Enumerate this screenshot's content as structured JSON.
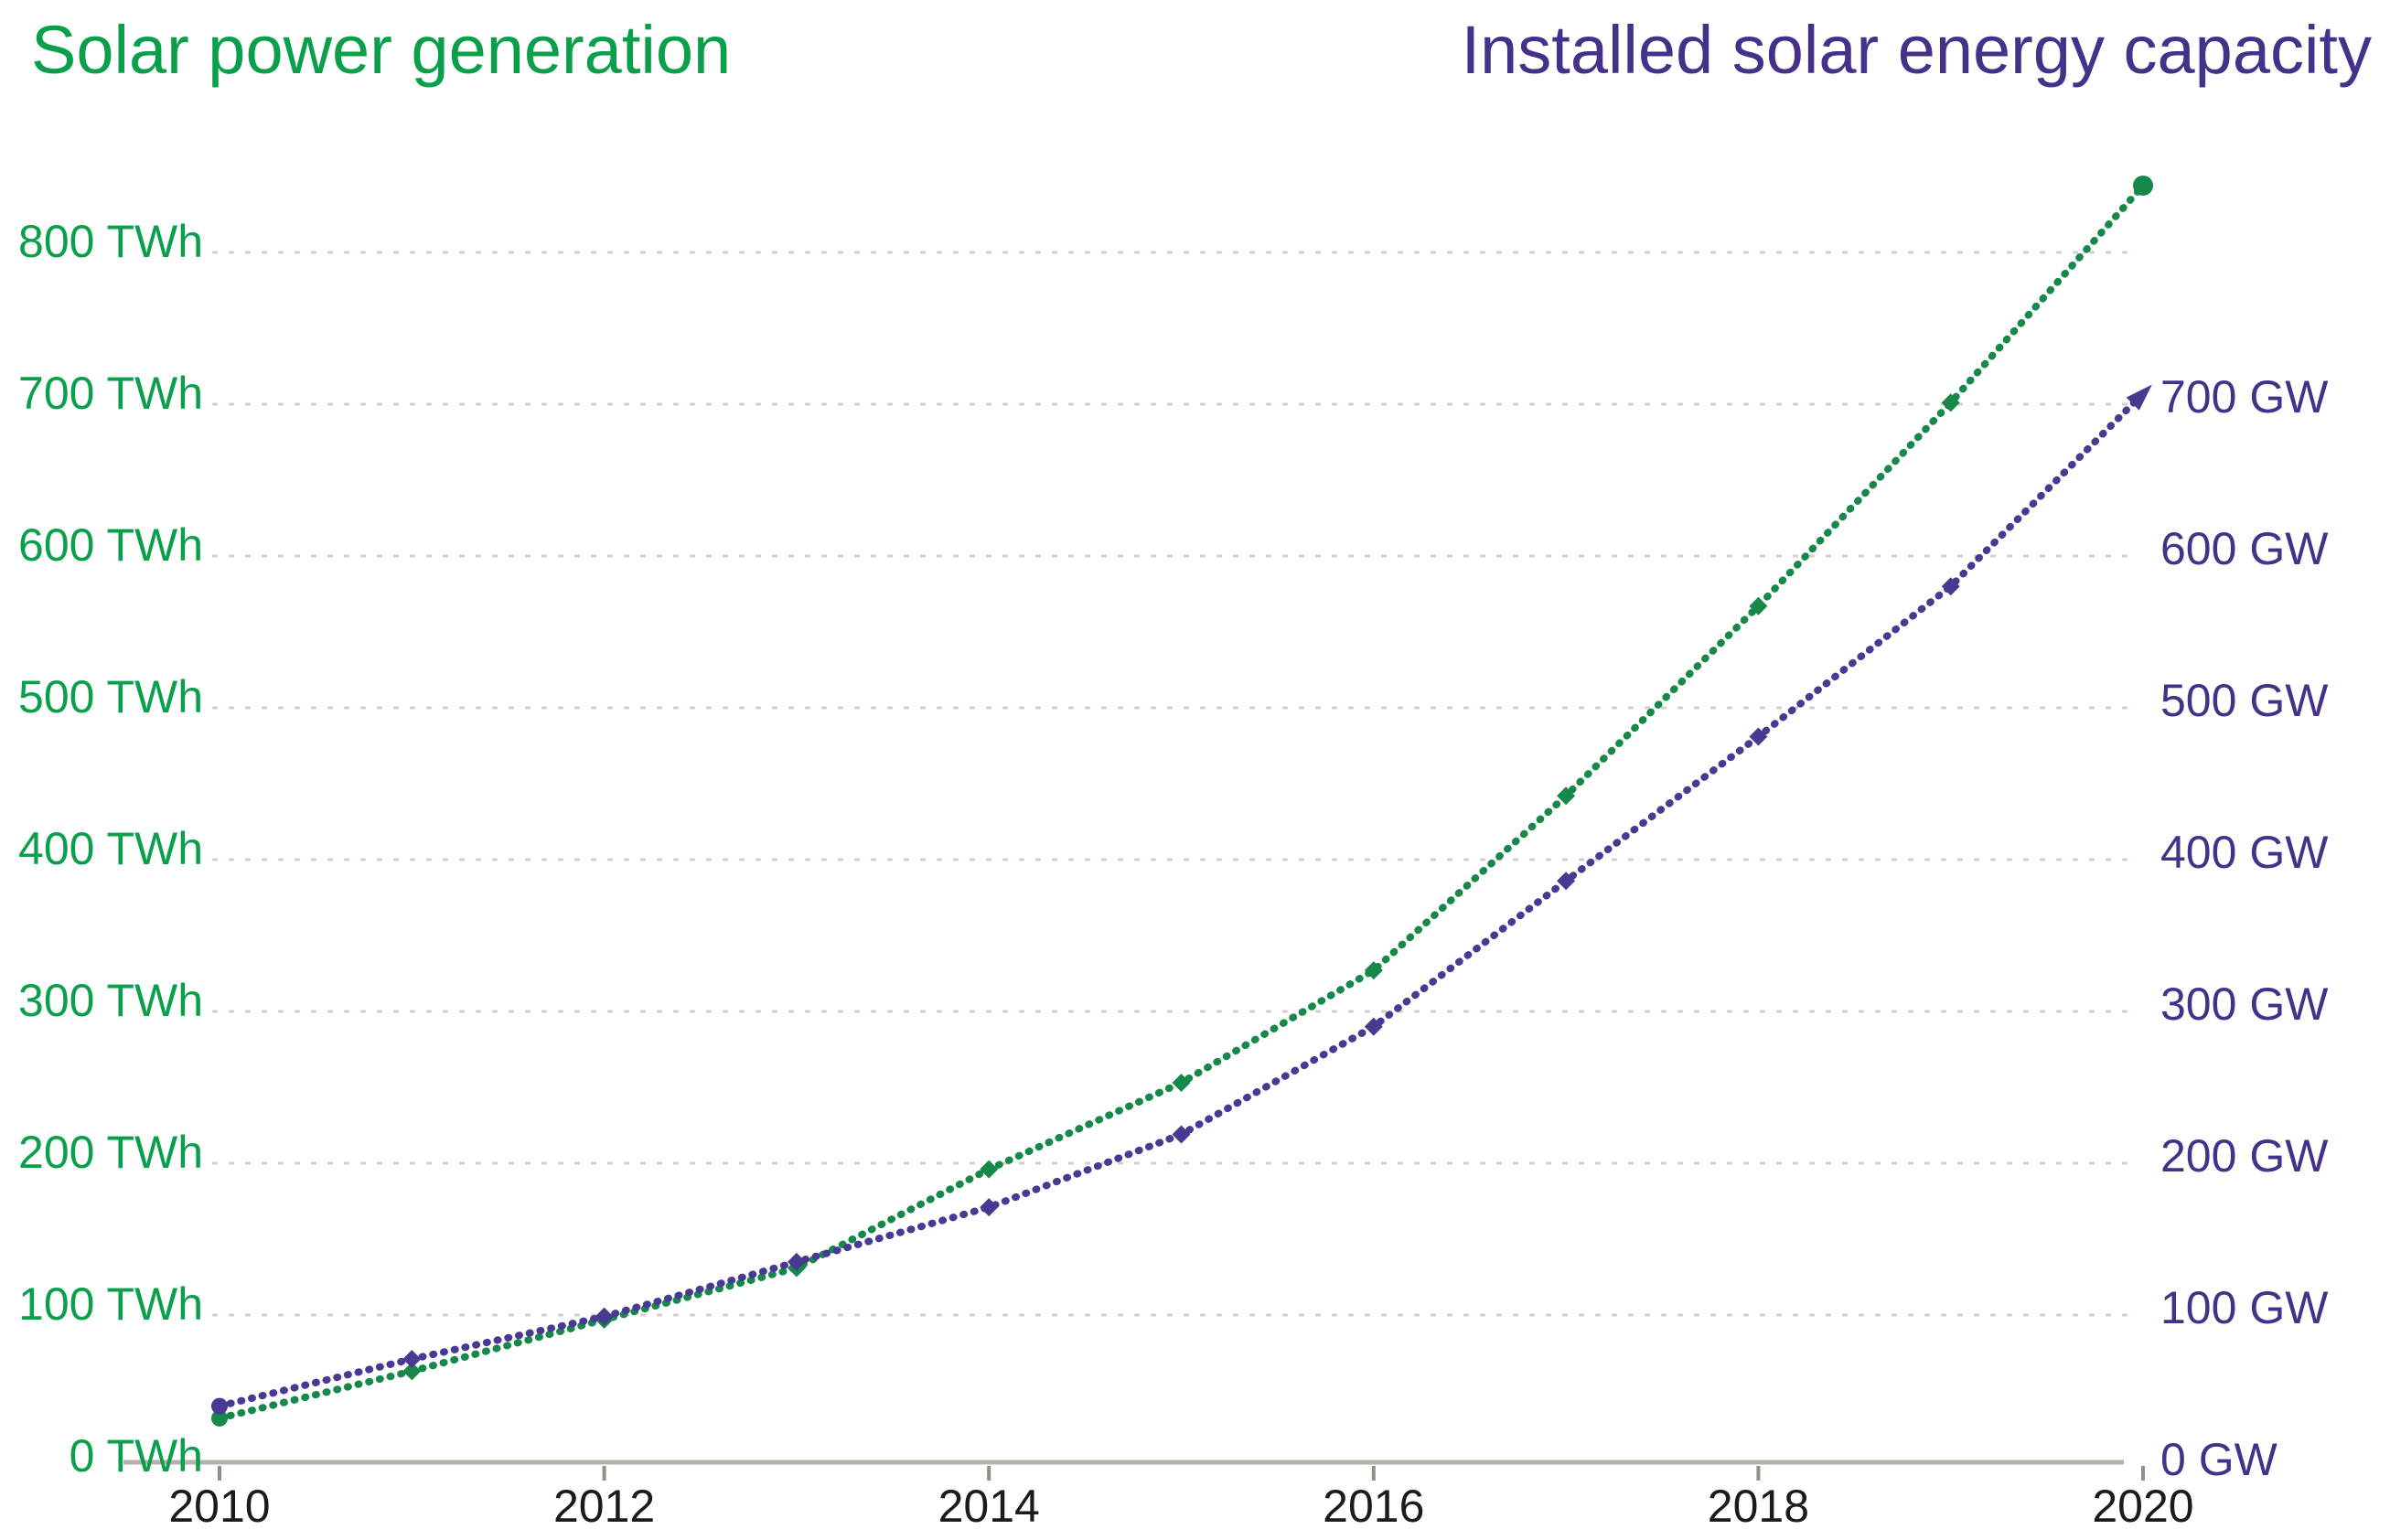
{
  "titles": {
    "left": "Solar power generation",
    "right": "Installed solar energy capacity"
  },
  "colors": {
    "generation_title": "#0a9f4b",
    "generation_line": "#15884a",
    "capacity_title": "#443189",
    "capacity_line": "#483a93",
    "gridline": "#dacfc8",
    "axis_line": "#b7b1a8",
    "tick": "#948e86",
    "x_label": "#1b1b1b"
  },
  "chart_data": {
    "type": "line",
    "title_left": "Solar power generation",
    "title_right": "Installed solar energy capacity",
    "x": [
      2010,
      2011,
      2012,
      2013,
      2014,
      2015,
      2016,
      2017,
      2018,
      2019,
      2020
    ],
    "series": [
      {
        "name": "Solar power generation",
        "unit": "TWh",
        "axis": "left",
        "color_key": "generation",
        "end_marker": "dot",
        "values": [
          32,
          63,
          97,
          131,
          196,
          253,
          327,
          442,
          567,
          701,
          844
        ]
      },
      {
        "name": "Installed solar energy capacity",
        "unit": "GW",
        "axis": "right",
        "color_key": "capacity",
        "end_marker": "arrow",
        "values": [
          40,
          71,
          99,
          135,
          171,
          219,
          290,
          386,
          481,
          580,
          707
        ]
      }
    ],
    "left_axis": {
      "unit": "TWh",
      "min": 0,
      "max": 800,
      "step": 100,
      "labels": [
        "0 TWh",
        "100 TWh",
        "200 TWh",
        "300 TWh",
        "400 TWh",
        "500 TWh",
        "600 TWh",
        "700 TWh",
        "800 TWh"
      ]
    },
    "right_axis": {
      "unit": "GW",
      "min": 0,
      "max": 700,
      "step": 100,
      "labels": [
        "0 GW",
        "100 GW",
        "200 GW",
        "300 GW",
        "400 GW",
        "500 GW",
        "600 GW",
        "700 GW"
      ]
    },
    "x_axis": {
      "tick_years": [
        2010,
        2012,
        2014,
        2016,
        2018,
        2020
      ],
      "labels": [
        "2010",
        "2012",
        "2014",
        "2016",
        "2018",
        "2020"
      ]
    },
    "grid": "dotted-horizontal",
    "legend": "none"
  }
}
